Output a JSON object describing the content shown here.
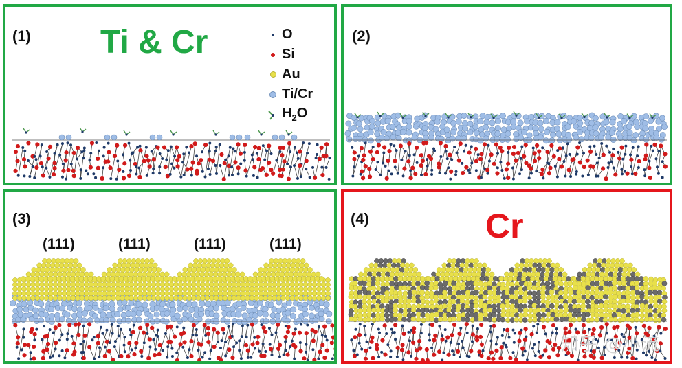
{
  "panels": [
    {
      "label": "(1)",
      "title": "Ti & Cr"
    },
    {
      "label": "(2)"
    },
    {
      "label": "(3)",
      "facets": [
        "(111)",
        "(111)",
        "(111)",
        "(111)"
      ]
    },
    {
      "label": "(4)",
      "title": "Cr"
    }
  ],
  "legend": [
    {
      "symbol": "O",
      "label": "O",
      "color": "#1f3a68"
    },
    {
      "symbol": "Si",
      "label": "Si",
      "color": "#d11a1a"
    },
    {
      "symbol": "Au",
      "label": "Au",
      "color": "#e8e04a"
    },
    {
      "symbol": "TiCr",
      "label": "Ti/Cr",
      "color": "#9fbde6"
    },
    {
      "symbol": "H2O",
      "label_main": "H",
      "label_sub": "2",
      "label_end": "O",
      "color": "#4f9a4f"
    }
  ],
  "colors": {
    "frame_good": "#21a845",
    "frame_bad": "#e5161c",
    "oxygen": "#1f3a68",
    "silicon": "#d11a1a",
    "gold": "#e8e04a",
    "ti_cr": "#9fbde6",
    "water": "#4f9a4f"
  },
  "watermark": "知乎 @小流"
}
